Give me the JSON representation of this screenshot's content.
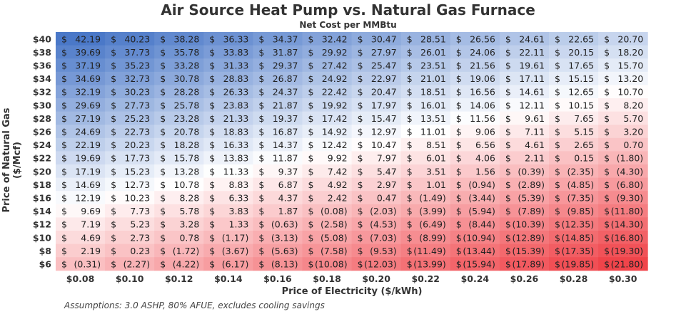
{
  "chart_data": {
    "type": "heatmap",
    "title": "Air Source Heat Pump vs. Natural Gas Furnace",
    "subtitle": "Net Cost per MMBtu",
    "xlabel": "Price of Electricity ($/kWh)",
    "ylabel": "Price of Natural Gas ($/Mcf)",
    "x_labels": [
      "$0.08",
      "$0.10",
      "$0.12",
      "$0.14",
      "$0.16",
      "$0.18",
      "$0.20",
      "$0.22",
      "$0.24",
      "$0.26",
      "$0.28",
      "$0.30"
    ],
    "y_labels": [
      "$40",
      "$38",
      "$36",
      "$34",
      "$32",
      "$30",
      "$28",
      "$26",
      "$24",
      "$22",
      "$20",
      "$18",
      "$16",
      "$14",
      "$12",
      "$10",
      "$8",
      "$6"
    ],
    "values": [
      [
        42.19,
        40.23,
        38.28,
        36.33,
        34.37,
        32.42,
        30.47,
        28.51,
        26.56,
        24.61,
        22.65,
        20.7
      ],
      [
        39.69,
        37.73,
        35.78,
        33.83,
        31.87,
        29.92,
        27.97,
        26.01,
        24.06,
        22.11,
        20.15,
        18.2
      ],
      [
        37.19,
        35.23,
        33.28,
        31.33,
        29.37,
        27.42,
        25.47,
        23.51,
        21.56,
        19.61,
        17.65,
        15.7
      ],
      [
        34.69,
        32.73,
        30.78,
        28.83,
        26.87,
        24.92,
        22.97,
        21.01,
        19.06,
        17.11,
        15.15,
        13.2
      ],
      [
        32.19,
        30.23,
        28.28,
        26.33,
        24.37,
        22.42,
        20.47,
        18.51,
        16.56,
        14.61,
        12.65,
        10.7
      ],
      [
        29.69,
        27.73,
        25.78,
        23.83,
        21.87,
        19.92,
        17.97,
        16.01,
        14.06,
        12.11,
        10.15,
        8.2
      ],
      [
        27.19,
        25.23,
        23.28,
        21.33,
        19.37,
        17.42,
        15.47,
        13.51,
        11.56,
        9.61,
        7.65,
        5.7
      ],
      [
        24.69,
        22.73,
        20.78,
        18.83,
        16.87,
        14.92,
        12.97,
        11.01,
        9.06,
        7.11,
        5.15,
        3.2
      ],
      [
        22.19,
        20.23,
        18.28,
        16.33,
        14.37,
        12.42,
        10.47,
        8.51,
        6.56,
        4.61,
        2.65,
        0.7
      ],
      [
        19.69,
        17.73,
        15.78,
        13.83,
        11.87,
        9.92,
        7.97,
        6.01,
        4.06,
        2.11,
        0.15,
        -1.8
      ],
      [
        17.19,
        15.23,
        13.28,
        11.33,
        9.37,
        7.42,
        5.47,
        3.51,
        1.56,
        -0.39,
        -2.35,
        -4.3
      ],
      [
        14.69,
        12.73,
        10.78,
        8.83,
        6.87,
        4.92,
        2.97,
        1.01,
        -0.94,
        -2.89,
        -4.85,
        -6.8
      ],
      [
        12.19,
        10.23,
        8.28,
        6.33,
        4.37,
        2.42,
        0.47,
        -1.49,
        -3.44,
        -5.39,
        -7.35,
        -9.3
      ],
      [
        9.69,
        7.73,
        5.78,
        3.83,
        1.87,
        -0.08,
        -2.03,
        -3.99,
        -5.94,
        -7.89,
        -9.85,
        -11.8
      ],
      [
        7.19,
        5.23,
        3.28,
        1.33,
        -0.63,
        -2.58,
        -4.53,
        -6.49,
        -8.44,
        -10.39,
        -12.35,
        -14.3
      ],
      [
        4.69,
        2.73,
        0.78,
        -1.17,
        -3.13,
        -5.08,
        -7.03,
        -8.99,
        -10.94,
        -12.89,
        -14.85,
        -16.8
      ],
      [
        2.19,
        0.23,
        -1.72,
        -3.67,
        -5.63,
        -7.58,
        -9.53,
        -11.49,
        -13.44,
        -15.39,
        -17.35,
        -19.3
      ],
      [
        -0.31,
        -2.27,
        -4.22,
        -6.17,
        -8.13,
        -10.08,
        -12.03,
        -13.99,
        -15.94,
        -17.89,
        -19.85,
        -21.8
      ]
    ],
    "color_scale": {
      "high": "#4a78c8",
      "mid": "#ffffff",
      "low": "#f0444a"
    },
    "note": "Assumptions: 3.0 ASHP, 80% AFUE, excludes cooling savings"
  }
}
